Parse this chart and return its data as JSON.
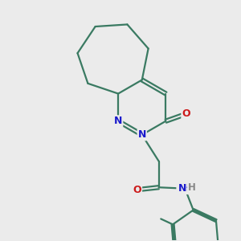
{
  "background_color": "#ebebeb",
  "bond_color": "#3a7a62",
  "atom_colors": {
    "N": "#1a1acc",
    "O": "#cc1a1a",
    "H": "#888888"
  },
  "line_width": 1.6,
  "figsize": [
    3.0,
    3.0
  ],
  "dpi": 100
}
